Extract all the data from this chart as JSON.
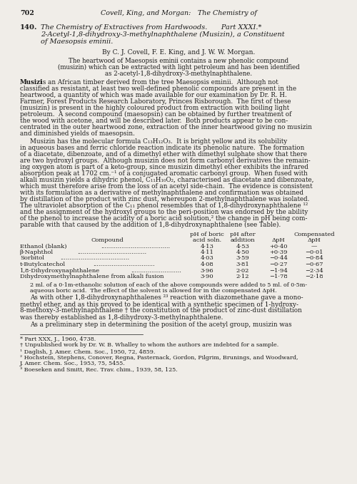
{
  "bg_color": "#f0ede8",
  "text_color": "#1a1a1a",
  "page_number": "702",
  "header_text": "Covell, King, and Morgan: The Chemistry of",
  "section_num": "140.",
  "section_title_line1": "The Chemistry of Extractives from Hardwoods.  Part XXXI.*",
  "section_title_line2": "2-Acetyl-1,8-dihydroxy-3-methylnaphthalene (Musizin), a Constituent",
  "section_title_line3": "of Maesopsis eminii.",
  "authors": "By C. J. Covell, F. E. King, and J. W. W. Morgan.",
  "abstract_line1": "The heartwood of Maesopsis eminii contains a new phenolic compound",
  "abstract_line2": "(musizin) which can be extracted with light petroleum and has been identified",
  "abstract_line3": "as 2-acetyl-1,8-dihydroxy-3-methylnaphthalene.",
  "para1_lines": [
    "is an African timber derived from the tree Maesopsis eminii.  Although not",
    "classified as resistant, at least two well-defined phenolic compounds are present in the",
    "heartwood, a quantity of which was made available for our examination by Dr. R. H.",
    "Farmer, Forest Products Research Laboratory, Princes Risborough.  The first of these",
    "(musizin) is present in the highly coloured product from extraction with boiling light",
    "petroleum.  A second compound (maesopsin) can be obtained by further treatment of",
    "the wood with acetone, and will be described later.  Both products appear to be con-",
    "centrated in the outer heartwood zone, extraction of the inner heartwood giving no musizin",
    "and diminished yields of maesopsin."
  ],
  "para2_lines": [
    "Musizin has the molecular formula C₁₃H₁₂O₃.  It is bright yellow and its solubility",
    "in aqueous bases and ferric chloride reaction indicate its phenolic nature.  The formation",
    "of a diacetate, dibenzoate, and of a dimethyl ether with dimethyl sulphate show that there",
    "are two hydroxyl groups.  Although musizin does not form carbonyl derivatives the remain-",
    "ing oxygen atom is part of a keto-group, since musizin dimethyl ether exhibits the infrared",
    "absorption peak at 1702 cm.⁻¹ of a conjugated aromatic carbonyl group.  When fused with",
    "alkali musizin yields a dihydric phenol, C₁₁H₁₀O₂, characterised as diacetate and dibenzoate,",
    "which must therefore arise from the loss of an acetyl side-chain.  The evidence is consistent",
    "with its formulation as a derivative of methylnaphthalene and confirmation was obtained",
    "by distillation of the product with zinc dust, whereupon 2-methylnaphthalene was isolated.",
    "The ultraviolet absorption of the C₁₁ phenol resembles that of 1,8-dihydroxynaphthalene ¹²",
    "and the assignment of the hydroxyl groups to the peri-position was endorsed by the ability",
    "of the phenol to increase the acidity of a boric acid solution,² the change in pH being com-",
    "parable with that caused by the addition of 1,8-dihydroxynaphthalene (see Table)."
  ],
  "table_compounds": [
    "Ethanol (blank)",
    "β-Naphthol",
    "Sorbitol",
    "t-Butylcatechol",
    "1,8-Dihydroxynaphthalene",
    "Dihydroxymethylnaphthalene from alkali fusion"
  ],
  "table_ph_boric": [
    "4·13",
    "4·11",
    "4·03",
    "4·08",
    "3·96",
    "3·90"
  ],
  "table_ph_after": [
    "4·53",
    "4·50",
    "3·59",
    "3·81",
    "2·02",
    "2·12"
  ],
  "table_delta_ph": [
    "+0·40",
    "+0·39",
    "−0·44",
    "−0·27",
    "−1·94",
    "−1·78"
  ],
  "table_comp_delta_ph": [
    "—",
    "−0·01",
    "−0·84",
    "−0·67",
    "−2·34",
    "−2·18"
  ],
  "table_fn1": "2 ml. of a 0·1m-ethanolic solution of each of the above compounds were added to 5 ml. of 0·5m-",
  "table_fn2": "aqueous boric acid.  The effect of the solvent is allowed for in the compensated ΔpH.",
  "last_para_lines": [
    "As with other 1,8-dihydroxynaphthalenes ²³ reaction with diazomethane gave a mono-",
    "methyl ether, and as this proved to be identical with a synthetic specimen of 1-hydroxy-",
    "8-methoxy-3-methylnaphthalene † the constitution of the product of zinc-dust distillation",
    "was thereby established as 1,8-dihydroxy-3-methylnaphthalene.",
    "As a preliminary step in determining the position of the acetyl group, musizin was"
  ],
  "footnote1": "* Part XXX, J., 1960, 4738.",
  "footnote2": "† Unpublished work by Dr. W. B. Whalley to whom the authors are indebted for a sample.",
  "footnote3": "¹ Daglish, J. Amer. Chem. Soc., 1950, 72, 4859.",
  "footnote4a": "² Hochstein, Stephens, Conover, Regna, Pasternack, Gordon, Pilgrim, Brunings, and Woodward,",
  "footnote4b": "J. Amer. Chem. Soc., 1953, 75, 5455.",
  "footnote5": "³ Boeseken and Smitt, Rec. Trav. chim., 1939, 58, 125."
}
